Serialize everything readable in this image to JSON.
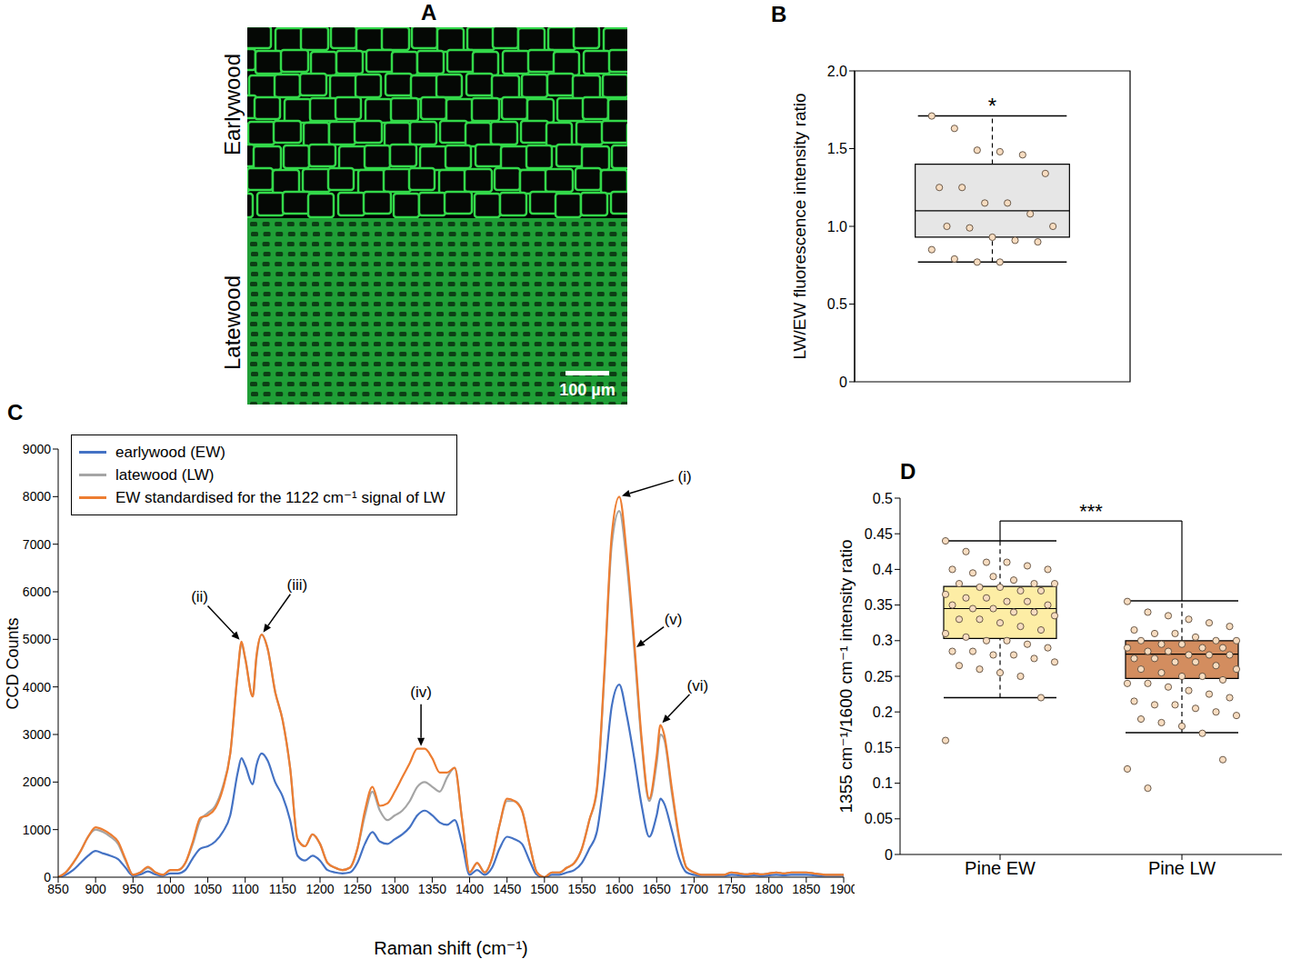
{
  "chart_data": [
    {
      "type": "image",
      "title": "A",
      "annotations": [
        "Earlywood",
        "Latewood",
        "100 µm"
      ]
    },
    {
      "type": "box",
      "title": "B",
      "ylabel": "LW/EW fluorescence intensity ratio",
      "ylim": [
        0,
        2
      ],
      "yticks": [
        0,
        0.5,
        {
          "value": 1,
          "label": "1.0"
        },
        1.5,
        {
          "value": 2,
          "label": "2.0"
        }
      ],
      "tick_labels": "y",
      "boxes": [
        {
          "whisker_low": 0.77,
          "q1": 0.93,
          "median": 1.1,
          "q3": 1.4,
          "whisker_high": 1.71,
          "color": "#e6e6e6",
          "points": [
            1.71,
            1.63,
            1.49,
            1.48,
            1.46,
            1.34,
            1.25,
            1.25,
            1.15,
            1.15,
            1.08,
            1.0,
            1.0,
            0.99,
            0.93,
            0.91,
            0.9,
            0.85,
            0.79,
            0.77,
            0.77
          ]
        }
      ],
      "annotations": [
        {
          "text": "*"
        }
      ]
    },
    {
      "type": "line",
      "title": "C",
      "xlabel": "Raman shift (cm⁻¹)",
      "ylabel": "CCD Counts",
      "x": [
        850,
        860,
        870,
        880,
        890,
        900,
        910,
        920,
        930,
        940,
        950,
        960,
        970,
        980,
        990,
        1000,
        1010,
        1020,
        1030,
        1040,
        1050,
        1060,
        1070,
        1080,
        1090,
        1095,
        1100,
        1110,
        1115,
        1122,
        1130,
        1140,
        1150,
        1160,
        1170,
        1180,
        1190,
        1200,
        1210,
        1220,
        1230,
        1240,
        1250,
        1260,
        1270,
        1280,
        1290,
        1300,
        1310,
        1320,
        1330,
        1340,
        1350,
        1360,
        1370,
        1380,
        1390,
        1400,
        1410,
        1420,
        1430,
        1440,
        1450,
        1460,
        1470,
        1480,
        1490,
        1500,
        1510,
        1520,
        1530,
        1540,
        1550,
        1560,
        1570,
        1580,
        1590,
        1600,
        1610,
        1620,
        1630,
        1640,
        1650,
        1655,
        1660,
        1670,
        1680,
        1690,
        1700,
        1710,
        1720,
        1730,
        1740,
        1750,
        1760,
        1770,
        1780,
        1790,
        1800,
        1810,
        1820,
        1830,
        1840,
        1850,
        1860,
        1870,
        1880,
        1890,
        1900
      ],
      "series": [
        {
          "name": "earlywood (EW)",
          "color": "#4472c4",
          "values": [
            0,
            50,
            150,
            300,
            450,
            550,
            500,
            450,
            380,
            200,
            30,
            60,
            120,
            60,
            30,
            80,
            80,
            150,
            400,
            600,
            650,
            750,
            950,
            1300,
            2200,
            2500,
            2350,
            1950,
            2350,
            2600,
            2450,
            2000,
            1700,
            1200,
            450,
            350,
            450,
            350,
            150,
            100,
            80,
            100,
            300,
            700,
            950,
            750,
            700,
            800,
            900,
            1050,
            1300,
            1400,
            1300,
            1150,
            1100,
            1200,
            700,
            50,
            150,
            50,
            200,
            600,
            850,
            800,
            700,
            350,
            50,
            0,
            50,
            50,
            100,
            150,
            300,
            600,
            950,
            2100,
            3600,
            4050,
            3400,
            2500,
            1500,
            850,
            1300,
            1650,
            1550,
            1000,
            400,
            100,
            50,
            30,
            30,
            30,
            30,
            50,
            40,
            30,
            40,
            30,
            40,
            50,
            40,
            50,
            50,
            50,
            40,
            30,
            30,
            30,
            30
          ]
        },
        {
          "name": "latewood (LW)",
          "color": "#a5a5a5",
          "values": [
            0,
            100,
            300,
            550,
            850,
            1000,
            950,
            850,
            700,
            350,
            50,
            100,
            200,
            100,
            50,
            150,
            150,
            300,
            700,
            1200,
            1350,
            1500,
            1900,
            2600,
            4300,
            4900,
            4600,
            3800,
            4600,
            5100,
            4800,
            3900,
            3300,
            2300,
            800,
            650,
            900,
            700,
            300,
            200,
            150,
            200,
            600,
            1300,
            1800,
            1400,
            1200,
            1300,
            1400,
            1600,
            1900,
            2000,
            1900,
            1800,
            2100,
            2300,
            1200,
            100,
            300,
            100,
            400,
            1100,
            1600,
            1600,
            1400,
            700,
            100,
            0,
            100,
            100,
            200,
            300,
            600,
            1200,
            1800,
            4200,
            7000,
            7700,
            6600,
            4800,
            2800,
            1600,
            2400,
            3000,
            2900,
            1800,
            800,
            200,
            100,
            50,
            50,
            50,
            50,
            100,
            80,
            60,
            80,
            60,
            80,
            100,
            80,
            100,
            100,
            100,
            80,
            60,
            50,
            50,
            50
          ]
        },
        {
          "name": "EW standardised for the 1122 cm⁻¹ signal of LW",
          "color": "#ed7d31",
          "values": [
            0,
            100,
            300,
            550,
            850,
            1050,
            1000,
            900,
            750,
            380,
            50,
            100,
            220,
            100,
            50,
            150,
            150,
            300,
            750,
            1250,
            1300,
            1450,
            1850,
            2600,
            4300,
            4950,
            4600,
            3800,
            4650,
            5100,
            4800,
            3900,
            3300,
            2300,
            800,
            650,
            900,
            700,
            300,
            200,
            150,
            200,
            600,
            1400,
            1900,
            1500,
            1550,
            1800,
            2100,
            2400,
            2700,
            2700,
            2500,
            2200,
            2200,
            2300,
            1200,
            100,
            300,
            100,
            400,
            1100,
            1650,
            1600,
            1400,
            700,
            100,
            0,
            100,
            100,
            200,
            300,
            600,
            1200,
            1850,
            4300,
            7200,
            8000,
            6800,
            4950,
            2900,
            1650,
            2550,
            3200,
            3000,
            1900,
            850,
            200,
            100,
            50,
            50,
            50,
            50,
            100,
            80,
            60,
            80,
            60,
            80,
            100,
            80,
            100,
            100,
            100,
            80,
            60,
            50,
            50,
            50
          ]
        }
      ],
      "xlim": [
        850,
        1900
      ],
      "xticks": [
        850,
        900,
        950,
        1000,
        1050,
        1100,
        1150,
        1200,
        1250,
        1300,
        1350,
        1400,
        1450,
        1500,
        1550,
        1600,
        1650,
        1700,
        1750,
        1800,
        1850,
        1900
      ],
      "ylim": [
        0,
        9000
      ],
      "yticks": [
        0,
        1000,
        2000,
        3000,
        4000,
        5000,
        6000,
        7000,
        8000,
        9000
      ],
      "legend": "upper left",
      "annotations": [
        {
          "text": "(i)",
          "x": 1600,
          "y": 8000
        },
        {
          "text": "(ii)",
          "x": 1095,
          "y": 4950
        },
        {
          "text": "(iii)",
          "x": 1122,
          "y": 5100
        },
        {
          "text": "(iv)",
          "x": 1335,
          "y": 2700
        },
        {
          "text": "(v)",
          "x": 1620,
          "y": 4800
        },
        {
          "text": "(vi)",
          "x": 1655,
          "y": 3200
        }
      ]
    },
    {
      "type": "box",
      "title": "D",
      "ylabel": "1355 cm⁻¹/1600 cm⁻¹ intensity ratio",
      "categories": [
        "Pine EW",
        "Pine LW"
      ],
      "ylim": [
        0,
        0.5
      ],
      "yticks": [
        0,
        0.05,
        0.1,
        0.15,
        0.2,
        0.25,
        0.3,
        0.35,
        0.4,
        0.45,
        0.5
      ],
      "boxes": [
        {
          "whisker_low": 0.22,
          "q1": 0.303,
          "median": 0.345,
          "q3": 0.376,
          "whisker_high": 0.44,
          "color": "#fdeda5",
          "points": [
            0.44,
            0.425,
            0.41,
            0.41,
            0.405,
            0.4,
            0.4,
            0.395,
            0.39,
            0.385,
            0.38,
            0.38,
            0.38,
            0.375,
            0.375,
            0.37,
            0.37,
            0.365,
            0.36,
            0.36,
            0.355,
            0.355,
            0.35,
            0.35,
            0.345,
            0.345,
            0.34,
            0.34,
            0.335,
            0.33,
            0.33,
            0.325,
            0.32,
            0.315,
            0.31,
            0.305,
            0.3,
            0.3,
            0.295,
            0.29,
            0.285,
            0.285,
            0.28,
            0.28,
            0.275,
            0.27,
            0.265,
            0.26,
            0.255,
            0.25,
            0.22,
            0.16
          ]
        },
        {
          "whisker_low": 0.171,
          "q1": 0.247,
          "median": 0.281,
          "q3": 0.3,
          "whisker_high": 0.356,
          "color": "#d38d5f",
          "points": [
            0.355,
            0.34,
            0.335,
            0.33,
            0.325,
            0.32,
            0.315,
            0.31,
            0.31,
            0.305,
            0.3,
            0.3,
            0.3,
            0.295,
            0.295,
            0.29,
            0.29,
            0.29,
            0.285,
            0.285,
            0.28,
            0.28,
            0.28,
            0.275,
            0.275,
            0.27,
            0.27,
            0.265,
            0.26,
            0.26,
            0.255,
            0.25,
            0.25,
            0.245,
            0.24,
            0.24,
            0.235,
            0.23,
            0.225,
            0.22,
            0.215,
            0.21,
            0.21,
            0.205,
            0.2,
            0.195,
            0.19,
            0.185,
            0.18,
            0.17,
            0.133,
            0.12,
            0.093
          ]
        }
      ],
      "annotations": [
        {
          "text": "***",
          "y": 0.468
        }
      ]
    }
  ]
}
